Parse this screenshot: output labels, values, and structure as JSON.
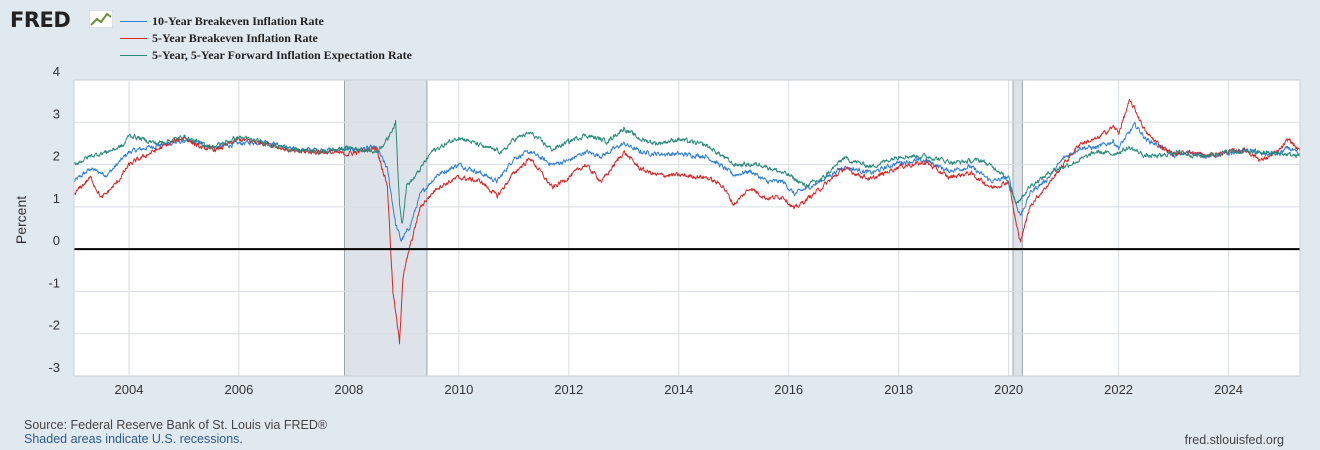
{
  "logo": {
    "text": "FRED"
  },
  "source": "Source: Federal Reserve Bank of St. Louis via FRED®",
  "recession_note": "Shaded areas indicate U.S. recessions.",
  "site": "fred.stlouisfed.org",
  "chart_data": {
    "type": "line",
    "ylabel": "Percent",
    "ylim": [
      -3,
      4
    ],
    "xlim": [
      2003.0,
      2025.3
    ],
    "yticks": [
      "4",
      "3",
      "2",
      "1",
      "0",
      "-1",
      "-2",
      "-3"
    ],
    "xticks": [
      "2004",
      "2006",
      "2008",
      "2010",
      "2012",
      "2014",
      "2016",
      "2018",
      "2020",
      "2022",
      "2024"
    ],
    "grid": true,
    "legend_position": "top-left",
    "recessions": [
      [
        2007.92,
        2009.42
      ],
      [
        2020.08,
        2020.25
      ]
    ],
    "series": [
      {
        "name": "10-Year Breakeven Inflation Rate",
        "color": "#2f7ed8",
        "x": [
          2003.0,
          2003.3,
          2003.6,
          2004.0,
          2004.5,
          2005.0,
          2005.3,
          2005.6,
          2006.0,
          2006.5,
          2007.0,
          2007.5,
          2008.0,
          2008.5,
          2008.7,
          2008.85,
          2008.95,
          2009.1,
          2009.3,
          2009.6,
          2010.0,
          2010.4,
          2010.7,
          2011.0,
          2011.3,
          2011.7,
          2012.0,
          2012.3,
          2012.6,
          2013.0,
          2013.3,
          2013.6,
          2014.0,
          2014.5,
          2014.8,
          2015.0,
          2015.3,
          2015.6,
          2015.9,
          2016.1,
          2016.5,
          2017.0,
          2017.5,
          2018.0,
          2018.5,
          2018.9,
          2019.3,
          2019.7,
          2020.0,
          2020.15,
          2020.22,
          2020.4,
          2020.7,
          2021.0,
          2021.3,
          2021.6,
          2021.9,
          2022.0,
          2022.3,
          2022.5,
          2022.8,
          2023.0,
          2023.3,
          2023.6,
          2024.0,
          2024.3,
          2024.6,
          2024.9,
          2025.1,
          2025.3
        ],
        "y": [
          1.6,
          1.9,
          1.75,
          2.3,
          2.45,
          2.55,
          2.5,
          2.4,
          2.5,
          2.55,
          2.35,
          2.35,
          2.35,
          2.4,
          1.9,
          0.6,
          0.2,
          0.5,
          1.3,
          1.75,
          2.0,
          1.8,
          1.6,
          2.15,
          2.3,
          2.0,
          2.1,
          2.3,
          2.2,
          2.5,
          2.3,
          2.25,
          2.25,
          2.2,
          1.95,
          1.75,
          1.85,
          1.6,
          1.6,
          1.3,
          1.55,
          1.95,
          1.8,
          2.05,
          2.1,
          1.85,
          1.95,
          1.6,
          1.7,
          1.0,
          0.8,
          1.35,
          1.65,
          2.15,
          2.4,
          2.4,
          2.55,
          2.4,
          2.95,
          2.6,
          2.4,
          2.2,
          2.3,
          2.2,
          2.25,
          2.35,
          2.25,
          2.25,
          2.4,
          2.2
        ]
      },
      {
        "name": "5-Year Breakeven Inflation Rate",
        "color": "#d62728",
        "x": [
          2003.0,
          2003.3,
          2003.5,
          2003.8,
          2004.0,
          2004.5,
          2005.0,
          2005.3,
          2005.6,
          2006.0,
          2006.5,
          2007.0,
          2007.5,
          2008.0,
          2008.5,
          2008.7,
          2008.8,
          2008.92,
          2008.98,
          2009.1,
          2009.3,
          2009.6,
          2010.0,
          2010.4,
          2010.7,
          2011.0,
          2011.3,
          2011.7,
          2012.0,
          2012.3,
          2012.6,
          2013.0,
          2013.3,
          2013.6,
          2014.0,
          2014.5,
          2014.8,
          2015.0,
          2015.3,
          2015.6,
          2015.9,
          2016.1,
          2016.5,
          2017.0,
          2017.5,
          2018.0,
          2018.5,
          2018.9,
          2019.3,
          2019.7,
          2020.0,
          2020.15,
          2020.22,
          2020.4,
          2020.7,
          2021.0,
          2021.3,
          2021.6,
          2021.9,
          2022.0,
          2022.2,
          2022.3,
          2022.5,
          2022.8,
          2023.0,
          2023.3,
          2023.6,
          2024.0,
          2024.3,
          2024.6,
          2024.9,
          2025.1,
          2025.3
        ],
        "y": [
          1.3,
          1.7,
          1.2,
          1.6,
          2.0,
          2.35,
          2.65,
          2.4,
          2.35,
          2.6,
          2.5,
          2.3,
          2.3,
          2.25,
          2.4,
          1.5,
          -1.0,
          -2.2,
          -0.7,
          0.0,
          1.0,
          1.45,
          1.7,
          1.6,
          1.25,
          1.8,
          2.15,
          1.45,
          1.7,
          2.0,
          1.6,
          2.3,
          1.9,
          1.75,
          1.75,
          1.7,
          1.5,
          1.05,
          1.45,
          1.2,
          1.25,
          0.95,
          1.35,
          1.9,
          1.65,
          1.95,
          2.05,
          1.7,
          1.8,
          1.45,
          1.6,
          0.5,
          0.2,
          1.05,
          1.5,
          2.0,
          2.5,
          2.6,
          2.9,
          2.75,
          3.5,
          3.3,
          2.75,
          2.4,
          2.25,
          2.3,
          2.2,
          2.3,
          2.35,
          2.1,
          2.3,
          2.6,
          2.3
        ]
      },
      {
        "name": "5-Year, 5-Year Forward Inflation Expectation Rate",
        "color": "#2a8a7a",
        "x": [
          2003.0,
          2003.3,
          2003.6,
          2003.9,
          2004.0,
          2004.5,
          2005.0,
          2005.5,
          2006.0,
          2006.5,
          2007.0,
          2007.5,
          2008.0,
          2008.5,
          2008.7,
          2008.85,
          2008.92,
          2008.97,
          2009.05,
          2009.2,
          2009.5,
          2010.0,
          2010.5,
          2010.8,
          2011.0,
          2011.3,
          2011.7,
          2012.0,
          2012.3,
          2012.7,
          2013.0,
          2013.3,
          2013.6,
          2014.0,
          2014.5,
          2014.8,
          2015.0,
          2015.5,
          2016.0,
          2016.3,
          2016.6,
          2017.0,
          2017.5,
          2018.0,
          2018.5,
          2019.0,
          2019.5,
          2019.9,
          2020.15,
          2020.22,
          2020.4,
          2020.8,
          2021.2,
          2021.6,
          2021.9,
          2022.2,
          2022.5,
          2022.8,
          2023.0,
          2023.5,
          2024.0,
          2024.5,
          2025.0,
          2025.3
        ],
        "y": [
          2.0,
          2.2,
          2.3,
          2.45,
          2.7,
          2.5,
          2.65,
          2.4,
          2.65,
          2.5,
          2.35,
          2.3,
          2.4,
          2.3,
          2.6,
          3.0,
          1.1,
          0.6,
          1.5,
          1.7,
          2.3,
          2.65,
          2.4,
          2.3,
          2.6,
          2.75,
          2.35,
          2.55,
          2.7,
          2.55,
          2.85,
          2.6,
          2.5,
          2.6,
          2.45,
          2.2,
          2.0,
          2.0,
          1.75,
          1.5,
          1.65,
          2.15,
          1.95,
          2.2,
          2.2,
          2.05,
          2.1,
          1.8,
          1.1,
          1.2,
          1.5,
          1.85,
          2.05,
          2.3,
          2.25,
          2.4,
          2.2,
          2.2,
          2.3,
          2.2,
          2.3,
          2.3,
          2.25,
          2.2
        ]
      }
    ]
  }
}
